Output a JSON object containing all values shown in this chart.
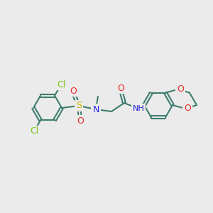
{
  "background_color": "#ebebeb",
  "bond_color": "#3d7d6e",
  "bond_width": 1.5,
  "atom_colors": {
    "Cl": "#7bc618",
    "S": "#c8b400",
    "O": "#e8282a",
    "N": "#2020e8",
    "C": "#3d7d6e",
    "H": "#2020e8"
  },
  "font_size": 9,
  "font_size_small": 8
}
